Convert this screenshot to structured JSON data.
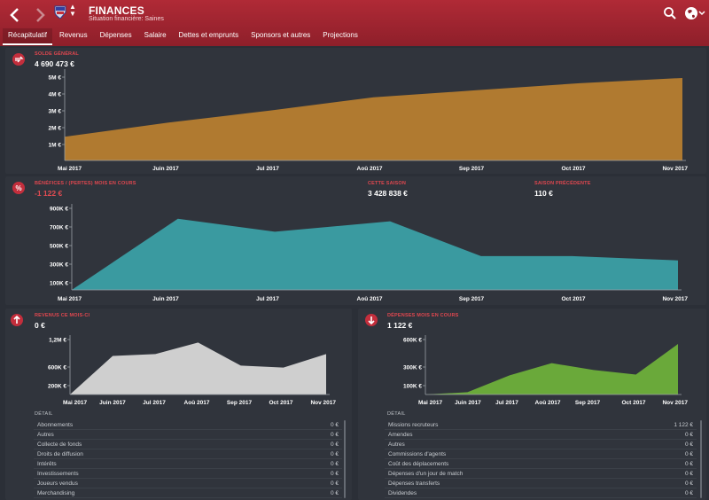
{
  "header": {
    "back_icon": "chevron-left-icon",
    "forward_icon": "chevron-right-icon",
    "club_icon": "club-crest-icon",
    "title": "FINANCES",
    "subtitle": "Situation financière: Saines",
    "accent": "#b02a36"
  },
  "tabs": [
    {
      "label": "Récapitulatif",
      "active": true
    },
    {
      "label": "Revenus"
    },
    {
      "label": "Dépenses"
    },
    {
      "label": "Salaire"
    },
    {
      "label": "Dettes et emprunts"
    },
    {
      "label": "Sponsors et autres"
    },
    {
      "label": "Projections"
    }
  ],
  "balance": {
    "label": "SOLDE GÉNÉRAL",
    "value": "4 690 473 €"
  },
  "profit": {
    "label": "BÉNÉFICES / (PERTES) MOIS EN COURS",
    "value": "-1 122 €",
    "season_label": "CETTE SAISON",
    "season_value": "3 428 838 €",
    "prev_label": "SAISON PRÉCÉDENTE",
    "prev_value": "110 €"
  },
  "income": {
    "label": "REVENUS CE MOIS-CI",
    "value": "0 €",
    "detail_label": "DÉTAIL",
    "rows": [
      {
        "name": "Abonnements",
        "amount": "0 €"
      },
      {
        "name": "Autres",
        "amount": "0 €"
      },
      {
        "name": "Collecte de fonds",
        "amount": "0 €"
      },
      {
        "name": "Droits de diffusion",
        "amount": "0 €"
      },
      {
        "name": "Intérêts",
        "amount": "0 €"
      },
      {
        "name": "Investissements",
        "amount": "0 €"
      },
      {
        "name": "Joueurs vendus",
        "amount": "0 €"
      },
      {
        "name": "Merchandising",
        "amount": "0 €"
      }
    ]
  },
  "expenses": {
    "label": "DÉPENSES MOIS EN COURS",
    "value": "1 122 €",
    "detail_label": "DÉTAIL",
    "rows": [
      {
        "name": "Missions recruteurs",
        "amount": "1 122 €"
      },
      {
        "name": "Amendes",
        "amount": "0 €"
      },
      {
        "name": "Autres",
        "amount": "0 €"
      },
      {
        "name": "Commissions d'agents",
        "amount": "0 €"
      },
      {
        "name": "Coût des déplacements",
        "amount": "0 €"
      },
      {
        "name": "Dépenses d'un jour de match",
        "amount": "0 €"
      },
      {
        "name": "Dépenses transferts",
        "amount": "0 €"
      },
      {
        "name": "Dividendes",
        "amount": "0 €"
      }
    ]
  },
  "chart_data": [
    {
      "type": "area",
      "categories": [
        "Mai 2017",
        "Juin 2017",
        "Jul 2017",
        "Aoû 2017",
        "Sep 2017",
        "Oct 2017",
        "Nov 2017"
      ],
      "values": [
        1.35,
        2.15,
        2.85,
        3.6,
        4.0,
        4.4,
        4.7
      ],
      "yticks": [
        "1M €",
        "2M €",
        "3M €",
        "4M €",
        "5M €"
      ],
      "ylim": [
        0,
        5
      ],
      "color": "#b07a30"
    },
    {
      "type": "area",
      "categories": [
        "Mai 2017",
        "Juin 2017",
        "Jul 2017",
        "Aoû 2017",
        "Sep 2017",
        "Oct 2017",
        "Nov 2017"
      ],
      "x": [
        0,
        0.35,
        0.67,
        1.05,
        1.35,
        1.65,
        2.0
      ],
      "values": [
        0,
        820,
        670,
        790,
        390,
        390,
        340
      ],
      "yticks": [
        "100K €",
        "300K €",
        "500K €",
        "700K €",
        "900K €"
      ],
      "ylim": [
        0,
        950
      ],
      "color": "#3a9aa0"
    },
    {
      "type": "area",
      "categories": [
        "Mai 2017",
        "Juin 2017",
        "Jul 2017",
        "Aoû 2017",
        "Sep 2017",
        "Oct 2017",
        "Nov 2017"
      ],
      "values": [
        0,
        1000,
        1050,
        1350,
        750,
        700,
        1050
      ],
      "yticks": [
        "200K €",
        "600K €",
        "1,2M €"
      ],
      "ylim": [
        0,
        1450
      ],
      "color": "#cfcfcf"
    },
    {
      "type": "area",
      "categories": [
        "Mai 2017",
        "Juin 2017",
        "Jul 2017",
        "Aoû 2017",
        "Sep 2017",
        "Oct 2017",
        "Nov 2017"
      ],
      "values": [
        0,
        30,
        250,
        410,
        320,
        260,
        660
      ],
      "yticks": [
        "100K €",
        "300K €",
        "600K €"
      ],
      "ylim": [
        0,
        730
      ],
      "color": "#6aa93a"
    }
  ]
}
